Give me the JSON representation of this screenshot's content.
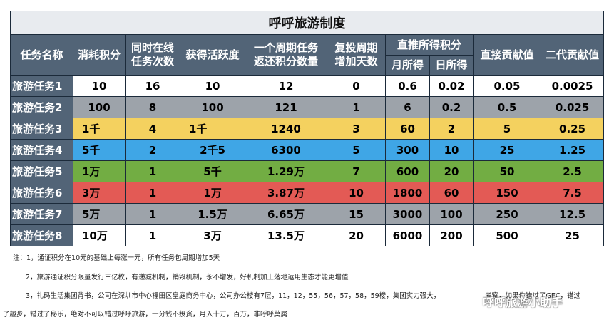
{
  "title": "呼呼旅游制度",
  "headers": {
    "task_name": "任务名称",
    "consume": "消耗积分",
    "concurrent": [
      "同时在线",
      "任务次数"
    ],
    "activity": "获得活跃度",
    "return": [
      "一个周期任务",
      "返还积分数量"
    ],
    "reinvest": [
      "复投周期",
      "增加天数"
    ],
    "direct_group": "直推所得积分",
    "monthly": "月所得",
    "daily": "日所得",
    "direct_contrib": "直接贡献值",
    "second_contrib": "二代贡献值"
  },
  "rows": [
    {
      "name": "旅游任务1",
      "color": "#ffffff",
      "cells": [
        "10",
        "16",
        "10",
        "12",
        "0",
        "0.6",
        "0.02",
        "0.05",
        "0.0025"
      ]
    },
    {
      "name": "旅游任务2",
      "color": "#9da3aa",
      "cells": [
        "100",
        "8",
        "100",
        "121",
        "1",
        "6",
        "0.2",
        "0.5",
        "0.025"
      ]
    },
    {
      "name": "旅游任务3",
      "color": "#f4d15f",
      "cells": [
        "1千",
        "4",
        "1千",
        "1240",
        "3",
        "60",
        "2",
        "5",
        "0.25"
      ]
    },
    {
      "name": "旅游任务4",
      "color": "#3fa6e6",
      "cells": [
        "5千",
        "2",
        "2千5",
        "6300",
        "5",
        "300",
        "10",
        "25",
        "1.25"
      ]
    },
    {
      "name": "旅游任务5",
      "color": "#72ad43",
      "cells": [
        "1万",
        "1",
        "5千",
        "1.29万",
        "7",
        "600",
        "20",
        "50",
        "2.5"
      ]
    },
    {
      "name": "旅游任务6",
      "color": "#e35a55",
      "cells": [
        "3万",
        "1",
        "1万",
        "3.87万",
        "10",
        "1800",
        "60",
        "150",
        "7.5"
      ]
    },
    {
      "name": "旅游任务7",
      "color": "#9da3aa",
      "cells": [
        "5万",
        "1",
        "1.5万",
        "6.65万",
        "15",
        "3000",
        "100",
        "250",
        "12.5"
      ]
    },
    {
      "name": "旅游任务8",
      "color": "#ffffff",
      "cells": [
        "10万",
        "1",
        "3万",
        "13.5万",
        "20",
        "6000",
        "200",
        "500",
        "25"
      ]
    }
  ],
  "notes": {
    "n1": "注：1，通证积分在10元的基础上每涨十元，所有任务包周期增加5天",
    "n2": "2，旅游通证积分限量发行三亿枚，有递减机制，销毁机制，永不增发，好机制加上落地运用生态才能更增值",
    "n3": "3，礼码生活集团背书，公司在深圳市中心福田区皇庭商务中心，公司办公楼有7层，11，12，55，56，57，58，59楼，集团实力强大，",
    "n3b": "考察，如果你错过了GEC，错过",
    "n4": "了趣步，错过了秘乐，绝对不可以错过呼呼旅游，一分钱不投资，月入十万，百万，非呼呼莫属"
  },
  "watermark": "呼呼旅游小助手"
}
